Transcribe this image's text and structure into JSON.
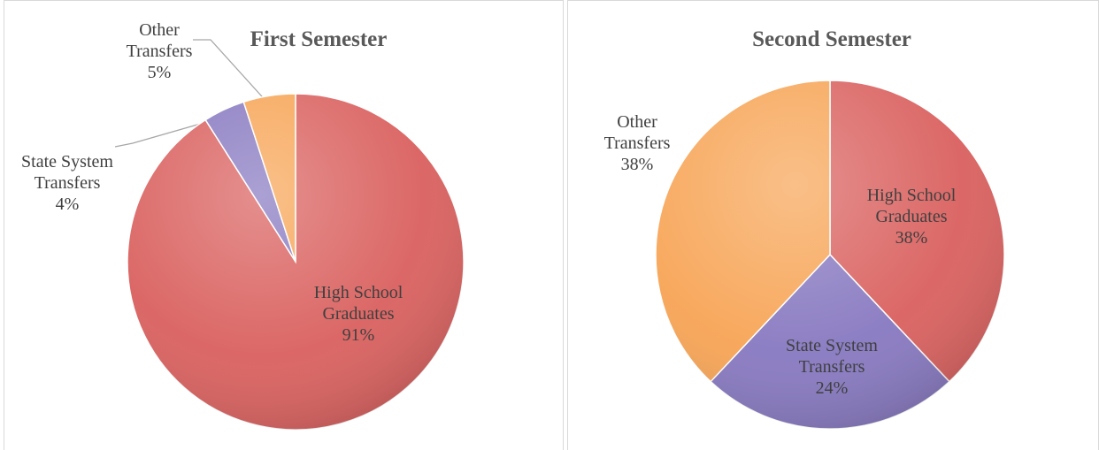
{
  "chart_data": [
    {
      "type": "pie",
      "title": "First Semester",
      "categories": [
        "High School Graduates",
        "State System Transfers",
        "Other Transfers"
      ],
      "values": [
        91,
        4,
        5
      ],
      "value_labels": [
        "91%",
        "4%",
        "5%"
      ],
      "colors": [
        "#d9605e",
        "#8778c0",
        "#f7a455"
      ]
    },
    {
      "type": "pie",
      "title": "Second Semester",
      "categories": [
        "High School Graduates",
        "State System Transfers",
        "Other Transfers"
      ],
      "values": [
        38,
        24,
        38
      ],
      "value_labels": [
        "38%",
        "24%",
        "38%"
      ],
      "colors": [
        "#d9605e",
        "#8778c0",
        "#f7a455"
      ]
    }
  ]
}
